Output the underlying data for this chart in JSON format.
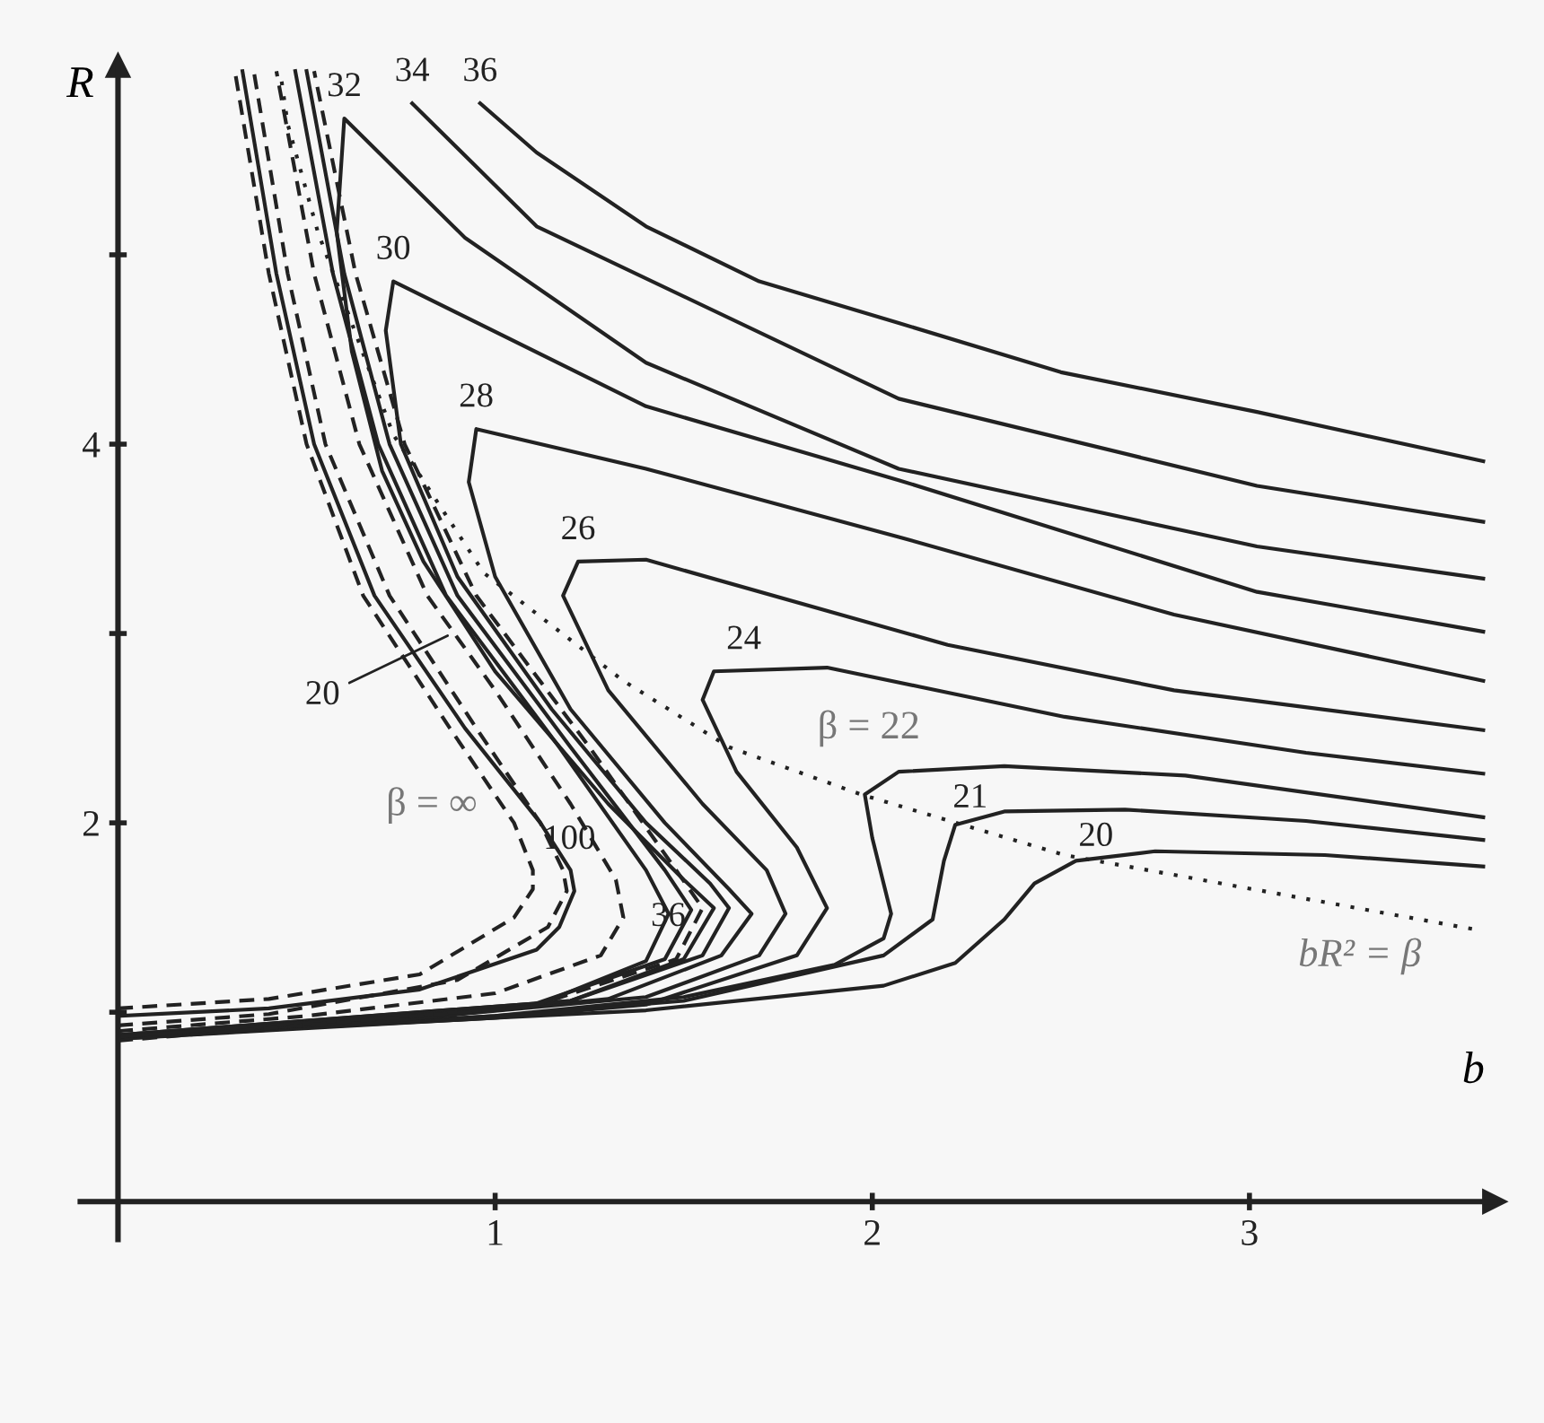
{
  "chart_data": {
    "type": "line",
    "xlabel": "b",
    "ylabel": "R",
    "xlim": [
      -0.1,
      3.65
    ],
    "ylim": [
      -0.2,
      6.0
    ],
    "xticks": [
      1,
      2,
      3
    ],
    "yticks": [
      {
        "value": 1,
        "label": null
      },
      2,
      {
        "value": 3,
        "label": null
      },
      4,
      {
        "value": 5,
        "label": null
      }
    ],
    "grid": false,
    "legend": false,
    "marker": "none",
    "series": [
      {
        "color": "#222222",
        "line_style": "solid",
        "x": [
          0,
          1.0,
          1.4,
          2.03,
          2.22,
          2.35,
          2.43,
          2.54,
          2.75,
          3.2,
          3.62
        ],
        "values": [
          0.86,
          0.97,
          1.01,
          1.14,
          1.26,
          1.49,
          1.68,
          1.8,
          1.85,
          1.83,
          1.77
        ]
      },
      {
        "color": "#222222",
        "line_style": "solid",
        "x": [
          0,
          1.0,
          1.5,
          2.03,
          2.16,
          2.19,
          2.22,
          2.35,
          2.67,
          3.15,
          3.62
        ],
        "values": [
          0.86,
          0.98,
          1.06,
          1.3,
          1.49,
          1.8,
          1.99,
          2.06,
          2.07,
          2.01,
          1.91
        ]
      },
      {
        "color": "#222222",
        "line_style": "solid",
        "x": [
          0,
          1.0,
          1.5,
          1.9,
          2.03,
          2.05,
          2.0,
          1.98,
          2.07,
          2.35,
          2.83,
          3.62
        ],
        "values": [
          0.87,
          0.98,
          1.08,
          1.25,
          1.39,
          1.52,
          1.92,
          2.15,
          2.27,
          2.3,
          2.25,
          2.03
        ]
      },
      {
        "color": "#222222",
        "line_style": "solid",
        "x": [
          0,
          1.0,
          1.4,
          1.8,
          1.88,
          1.8,
          1.64,
          1.55,
          1.58,
          1.88,
          2.51,
          3.15,
          3.62
        ],
        "values": [
          0.87,
          0.97,
          1.04,
          1.3,
          1.55,
          1.87,
          2.27,
          2.65,
          2.8,
          2.82,
          2.56,
          2.37,
          2.26
        ]
      },
      {
        "color": "#222222",
        "line_style": "solid",
        "x": [
          0,
          0.8,
          1.4,
          1.7,
          1.77,
          1.72,
          1.55,
          1.3,
          1.18,
          1.22,
          1.4,
          2.2,
          2.8,
          3.62
        ],
        "values": [
          0.87,
          0.97,
          1.08,
          1.3,
          1.52,
          1.75,
          2.1,
          2.7,
          3.2,
          3.38,
          3.39,
          2.94,
          2.7,
          2.49
        ]
      },
      {
        "color": "#222222",
        "line_style": "solid",
        "x": [
          0,
          0.7,
          1.3,
          1.6,
          1.68,
          1.62,
          1.45,
          1.2,
          1.0,
          0.93,
          0.95,
          1.4,
          2.07,
          2.8,
          3.62
        ],
        "values": [
          0.88,
          0.95,
          1.07,
          1.3,
          1.52,
          1.65,
          2.0,
          2.6,
          3.3,
          3.8,
          4.08,
          3.87,
          3.51,
          3.1,
          2.75
        ]
      },
      {
        "color": "#222222",
        "line_style": "solid",
        "x": [
          0,
          1.2,
          1.55,
          1.62,
          1.57,
          1.4,
          1.15,
          0.9,
          0.75,
          0.71,
          0.73,
          1.4,
          2.07,
          3.02,
          3.62
        ],
        "values": [
          0.88,
          1.06,
          1.3,
          1.55,
          1.68,
          2.0,
          2.6,
          3.3,
          4.0,
          4.6,
          4.86,
          4.2,
          3.81,
          3.22,
          3.01
        ]
      },
      {
        "color": "#222222",
        "line_style": "solid",
        "x": [
          0,
          1.2,
          1.5,
          1.58,
          1.5,
          1.3,
          1.0,
          0.81,
          0.7,
          0.62,
          0.58,
          0.6,
          0.92,
          1.4,
          2.07,
          3.02,
          3.62
        ],
        "values": [
          0.88,
          1.06,
          1.28,
          1.55,
          1.7,
          2.1,
          2.8,
          3.38,
          3.86,
          4.49,
          5.12,
          5.72,
          5.09,
          4.43,
          3.87,
          3.46,
          3.29
        ]
      },
      {
        "color": "#222222",
        "line_style": "solid",
        "x": [
          0,
          1.1,
          1.45,
          1.52,
          1.45,
          1.2,
          0.9,
          0.72,
          0.6,
          0.5
        ],
        "values": [
          0.87,
          1.04,
          1.28,
          1.54,
          1.75,
          2.4,
          3.2,
          4.0,
          4.9,
          5.97
        ]
      },
      {
        "color": "#222222",
        "line_style": "solid",
        "x": [
          0.78,
          1.11,
          2.07,
          3.02,
          3.62
        ],
        "values": [
          5.8,
          5.15,
          4.24,
          3.78,
          3.59
        ]
      },
      {
        "color": "#222222",
        "line_style": "solid",
        "x": [
          0,
          1.1,
          1.4,
          1.46,
          1.4,
          1.17,
          0.87,
          0.69,
          0.57,
          0.47
        ],
        "values": [
          0.87,
          1.03,
          1.27,
          1.52,
          1.75,
          2.4,
          3.2,
          4.0,
          4.9,
          5.97
        ]
      },
      {
        "color": "#222222",
        "line_style": "solid",
        "x": [
          0.96,
          1.11,
          1.4,
          1.7,
          2.07,
          2.5,
          3.02,
          3.62
        ],
        "values": [
          5.8,
          5.54,
          5.15,
          4.86,
          4.64,
          4.38,
          4.17,
          3.91
        ]
      },
      {
        "color": "#222222",
        "line_style": "solid",
        "x": [
          0,
          0.4,
          0.8,
          1.11,
          1.17,
          1.21,
          1.2,
          1.12,
          0.92,
          0.68,
          0.52,
          0.42,
          0.33
        ],
        "values": [
          0.98,
          1.02,
          1.12,
          1.33,
          1.45,
          1.64,
          1.75,
          2.0,
          2.5,
          3.2,
          4.0,
          4.9,
          5.97
        ]
      },
      {
        "color": "#222222",
        "line_style": "dashed",
        "x": [
          0,
          0.4,
          0.8,
          1.05,
          1.1,
          1.1,
          1.05,
          0.88,
          0.65,
          0.5,
          0.4,
          0.31
        ],
        "values": [
          1.02,
          1.07,
          1.2,
          1.5,
          1.65,
          1.75,
          2.0,
          2.5,
          3.2,
          4.0,
          4.9,
          5.97
        ]
      },
      {
        "color": "#222222",
        "line_style": "dashed",
        "x": [
          0,
          0.4,
          0.9,
          1.14,
          1.19,
          1.18,
          1.12,
          0.95,
          0.72,
          0.55,
          0.45,
          0.36
        ],
        "values": [
          0.93,
          0.99,
          1.17,
          1.45,
          1.64,
          1.75,
          2.0,
          2.5,
          3.2,
          4.0,
          4.9,
          5.97
        ]
      },
      {
        "color": "#222222",
        "line_style": "dashed",
        "x": [
          0,
          0.5,
          1.0,
          1.28,
          1.34,
          1.32,
          1.2,
          1.0,
          0.82,
          0.64,
          0.52,
          0.42
        ],
        "values": [
          0.9,
          0.98,
          1.1,
          1.3,
          1.5,
          1.7,
          2.1,
          2.7,
          3.2,
          4.0,
          4.9,
          5.97
        ]
      },
      {
        "color": "#222222",
        "line_style": "dashed",
        "x": [
          0,
          1.1,
          1.48,
          1.55,
          1.48,
          1.25,
          0.95,
          0.76,
          0.63,
          0.52
        ],
        "values": [
          0.85,
          1.03,
          1.28,
          1.55,
          1.75,
          2.4,
          3.2,
          4.0,
          4.9,
          5.97
        ]
      },
      {
        "color": "#222222",
        "line_style": "dotted",
        "x": [
          0.43,
          0.45,
          0.53,
          0.73,
          0.97,
          1.34,
          1.62,
          1.97,
          2.51,
          3.59
        ],
        "values": [
          5.97,
          5.69,
          5.12,
          4.05,
          3.32,
          2.75,
          2.4,
          2.15,
          1.83,
          1.44
        ]
      }
    ],
    "annotations": [
      {
        "text": "32",
        "x": 0.6,
        "y": 5.72
      },
      {
        "text": "34",
        "x": 0.78,
        "y": 5.8
      },
      {
        "text": "36",
        "x": 0.96,
        "y": 5.8
      },
      {
        "text": "30",
        "x": 0.73,
        "y": 4.86
      },
      {
        "text": "28",
        "x": 0.95,
        "y": 4.08
      },
      {
        "text": "26",
        "x": 1.22,
        "y": 3.38
      },
      {
        "text": "24",
        "x": 1.58,
        "y": 2.8
      },
      {
        "text": "β = 22",
        "x": 2.07,
        "y": 2.27
      },
      {
        "text": "21",
        "x": 2.22,
        "y": 1.99
      },
      {
        "text": "20",
        "x": 2.54,
        "y": 1.8
      },
      {
        "text": "100",
        "x": 1.21,
        "y": 1.64
      },
      {
        "text": "36",
        "x": 1.34,
        "y": 1.5
      },
      {
        "text": "20",
        "x": 0.886,
        "y": 3.0
      },
      {
        "text": "β = ∞",
        "x": 1.05,
        "y": 2.0
      },
      {
        "text": "bR² = β",
        "x": 3.59,
        "y": 1.44
      }
    ]
  }
}
